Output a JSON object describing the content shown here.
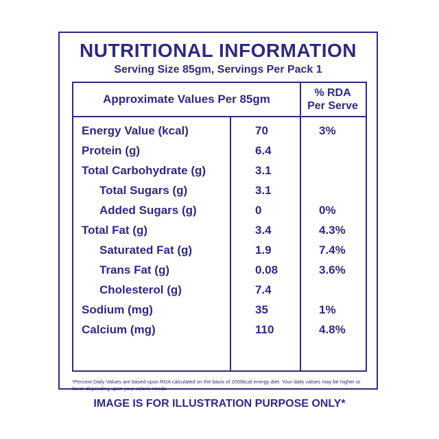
{
  "panel": {
    "title": "NUTRITIONAL INFORMATION",
    "serving": "Serving Size 85gm, Servings Per Pack 1"
  },
  "table": {
    "header_left": "Approximate Values Per 85gm",
    "header_right_line1": "% RDA",
    "header_right_line2": "Per Serve",
    "rows": [
      {
        "nutrient": "Energy Value (kcal)",
        "amount": "70",
        "rda": "3%"
      },
      {
        "nutrient": "Protein (g)",
        "amount": "6.4",
        "rda": ""
      },
      {
        "nutrient": "Total Carbohydrate (g)",
        "amount": "3.1",
        "rda": ""
      },
      {
        "nutrient": "Total Sugars (g)",
        "amount": "3.1",
        "rda": ""
      },
      {
        "nutrient": "Added Sugars (g)",
        "amount": "0",
        "rda": "0%"
      },
      {
        "nutrient": "Total Fat (g)",
        "amount": "3.4",
        "rda": "4.3%"
      },
      {
        "nutrient": "Saturated Fat (g)",
        "amount": "1.9",
        "rda": "7.4%"
      },
      {
        "nutrient": "Trans Fat (g)",
        "amount": "0.08",
        "rda": "3.6%"
      },
      {
        "nutrient": "Cholesterol (g)",
        "amount": "7.4",
        "rda": ""
      },
      {
        "nutrient": "Sodium (mg)",
        "amount": "35",
        "rda": "1%"
      },
      {
        "nutrient": "Calcium (mg)",
        "amount": "110",
        "rda": "4.8%"
      }
    ],
    "footnote": "*Percent Daily Values are based upon RDA calculated on the basis of 2000kcal energy diet. Your daily values may be higher or lower depending upon your calorie needs."
  },
  "disclaimer": "IMAGE IS FOR ILLUSTRATION PURPOSE ONLY*",
  "colors": {
    "ink": "#2e2a7c",
    "background": "#ffffff"
  }
}
